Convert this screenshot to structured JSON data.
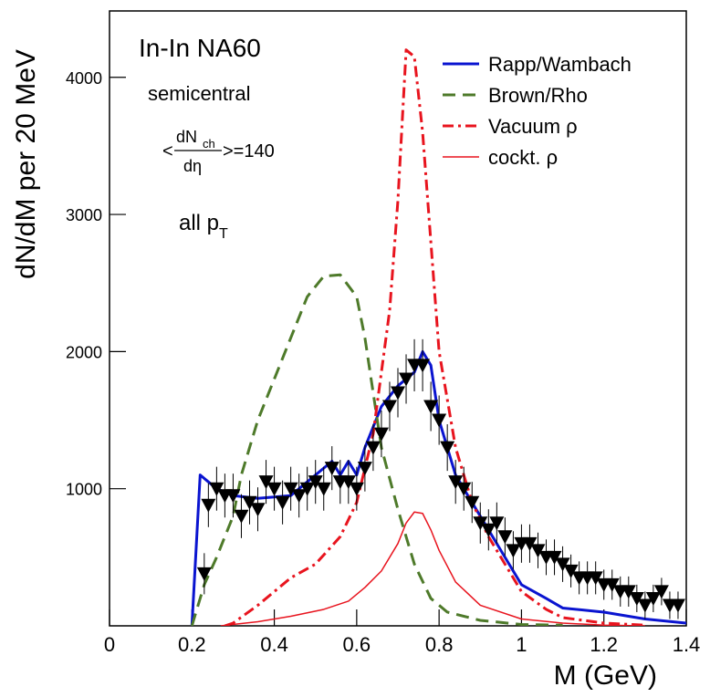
{
  "chart_data": {
    "type": "line",
    "xlabel": "M (GeV)",
    "ylabel": "dN/dM per 20 MeV",
    "xlim": [
      0,
      1.4
    ],
    "ylim": [
      0,
      4484
    ],
    "xticks": [
      0,
      0.2,
      0.4,
      0.6,
      0.8,
      1,
      1.2,
      1.4
    ],
    "yticks": [
      1000,
      2000,
      3000,
      4000
    ],
    "legend": "top-right",
    "annotations": {
      "system": "In-In NA60",
      "centrality": "semicentral",
      "multiplicity": {
        "prefix": "<",
        "numerator": "dN",
        "subscript": "ch",
        "denominator": "dη",
        "suffix": ">=140"
      },
      "pt": {
        "text": "all p",
        "subscript": "T"
      }
    },
    "series": [
      {
        "name": "Rapp/Wambach",
        "color": "#0a14d0",
        "style": "solid",
        "width": 3,
        "x": [
          0.2,
          0.22,
          0.24,
          0.26,
          0.3,
          0.36,
          0.4,
          0.44,
          0.48,
          0.52,
          0.54,
          0.56,
          0.58,
          0.6,
          0.62,
          0.66,
          0.7,
          0.74,
          0.76,
          0.78,
          0.8,
          0.84,
          0.88,
          0.92,
          0.96,
          1.0,
          1.06,
          1.1,
          1.2,
          1.3,
          1.4
        ],
        "values": [
          0,
          1100,
          1050,
          1000,
          950,
          930,
          940,
          950,
          1050,
          1150,
          1200,
          1100,
          1200,
          1100,
          1300,
          1600,
          1750,
          1850,
          2000,
          1900,
          1500,
          1100,
          900,
          700,
          500,
          300,
          200,
          130,
          100,
          50,
          20
        ]
      },
      {
        "name": "Brown/Rho",
        "color": "#4e7a2a",
        "style": "dashed",
        "width": 3,
        "x": [
          0.2,
          0.23,
          0.26,
          0.3,
          0.32,
          0.36,
          0.4,
          0.44,
          0.48,
          0.52,
          0.56,
          0.6,
          0.62,
          0.64,
          0.66,
          0.7,
          0.74,
          0.78,
          0.82,
          0.9,
          1.0,
          1.1
        ],
        "values": [
          0,
          300,
          500,
          800,
          1100,
          1500,
          1800,
          2100,
          2400,
          2550,
          2560,
          2400,
          2100,
          1700,
          1300,
          850,
          450,
          200,
          100,
          40,
          10,
          5
        ]
      },
      {
        "name": "Vacuum ρ",
        "color": "#e8141e",
        "style": "dashdot",
        "width": 3,
        "x": [
          0.28,
          0.3,
          0.36,
          0.4,
          0.44,
          0.5,
          0.56,
          0.6,
          0.64,
          0.68,
          0.7,
          0.72,
          0.74,
          0.76,
          0.78,
          0.8,
          0.84,
          0.88,
          0.92,
          0.96,
          1.0,
          1.06,
          1.1,
          1.2,
          1.3
        ],
        "values": [
          0,
          20,
          150,
          250,
          350,
          450,
          650,
          900,
          1400,
          2300,
          3100,
          4200,
          4150,
          3600,
          2800,
          2000,
          1300,
          900,
          650,
          450,
          250,
          120,
          60,
          20,
          5
        ]
      },
      {
        "name": "cockt. ρ",
        "color": "#e8141e",
        "style": "solid",
        "width": 1.5,
        "x": [
          0.27,
          0.36,
          0.44,
          0.52,
          0.58,
          0.62,
          0.66,
          0.7,
          0.72,
          0.74,
          0.76,
          0.78,
          0.8,
          0.84,
          0.9,
          1.0,
          1.1,
          1.2,
          1.3
        ],
        "values": [
          0,
          30,
          70,
          120,
          180,
          280,
          400,
          600,
          750,
          830,
          820,
          700,
          550,
          320,
          150,
          50,
          20,
          5,
          0
        ]
      }
    ],
    "points": {
      "color": "#000000",
      "x": [
        0.23,
        0.24,
        0.26,
        0.28,
        0.3,
        0.32,
        0.34,
        0.36,
        0.38,
        0.4,
        0.42,
        0.44,
        0.46,
        0.48,
        0.5,
        0.52,
        0.54,
        0.56,
        0.58,
        0.6,
        0.62,
        0.64,
        0.66,
        0.68,
        0.7,
        0.72,
        0.74,
        0.76,
        0.78,
        0.8,
        0.82,
        0.84,
        0.86,
        0.88,
        0.9,
        0.92,
        0.94,
        0.96,
        0.98,
        1.0,
        1.02,
        1.04,
        1.06,
        1.08,
        1.1,
        1.12,
        1.14,
        1.16,
        1.18,
        1.2,
        1.22,
        1.24,
        1.26,
        1.28,
        1.3,
        1.32,
        1.34,
        1.36,
        1.38
      ],
      "values": [
        380,
        880,
        1000,
        950,
        950,
        800,
        900,
        850,
        1050,
        1000,
        900,
        1000,
        950,
        1000,
        1050,
        1000,
        1150,
        1050,
        1050,
        1000,
        1150,
        1300,
        1400,
        1600,
        1700,
        1800,
        1900,
        1900,
        1600,
        1500,
        1300,
        1050,
        1000,
        900,
        750,
        700,
        750,
        650,
        550,
        600,
        600,
        550,
        500,
        500,
        450,
        400,
        350,
        350,
        350,
        300,
        300,
        250,
        250,
        200,
        150,
        200,
        250,
        150,
        150
      ],
      "errors": [
        150,
        160,
        160,
        160,
        160,
        160,
        160,
        160,
        160,
        160,
        160,
        160,
        160,
        160,
        160,
        160,
        160,
        160,
        160,
        160,
        170,
        170,
        170,
        180,
        180,
        180,
        190,
        190,
        180,
        180,
        170,
        160,
        160,
        150,
        150,
        150,
        150,
        140,
        140,
        140,
        140,
        130,
        130,
        130,
        130,
        120,
        120,
        120,
        120,
        110,
        110,
        110,
        110,
        100,
        100,
        100,
        100,
        100,
        100
      ]
    }
  }
}
